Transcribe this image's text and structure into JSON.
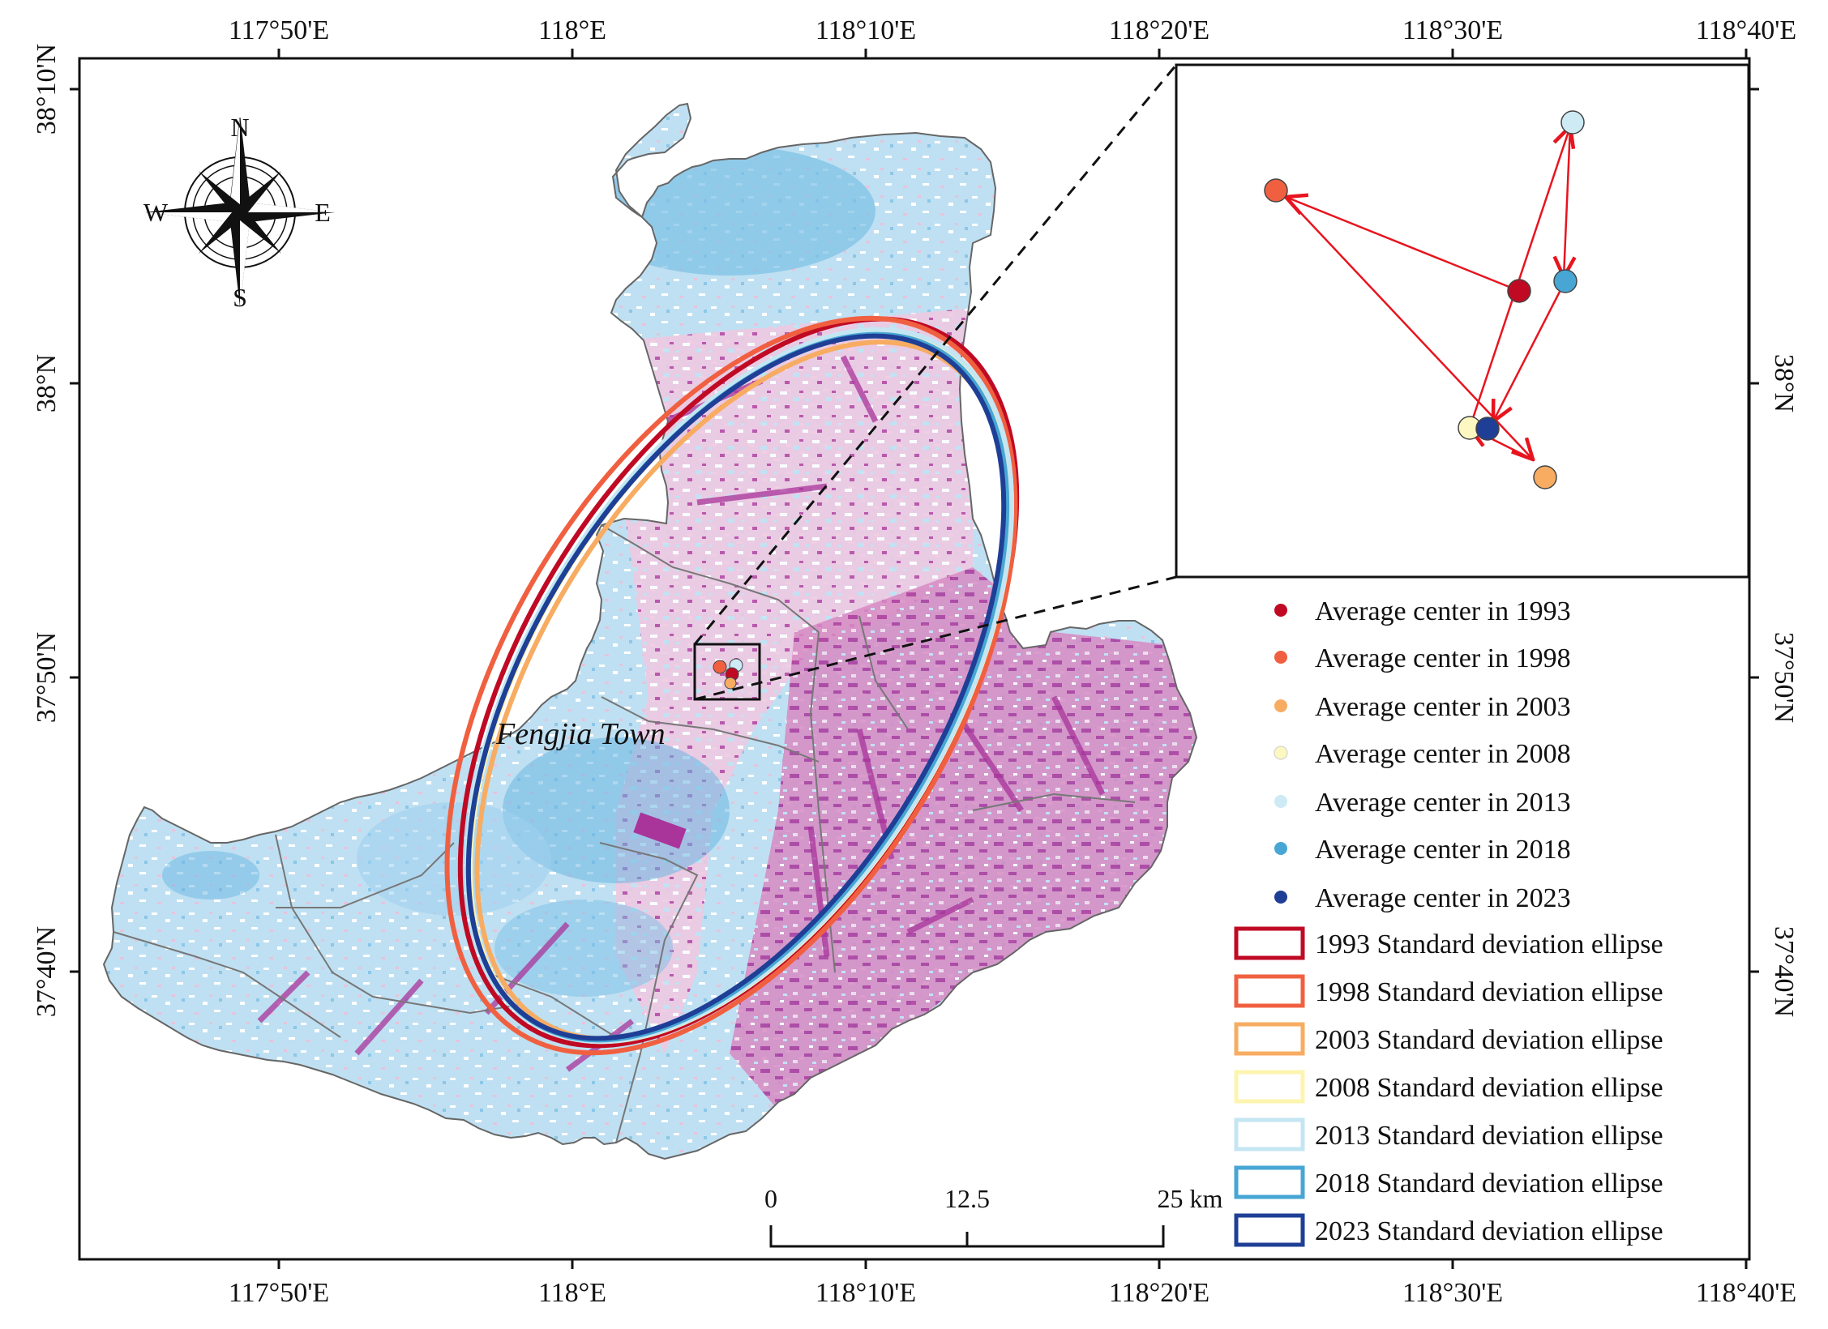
{
  "map": {
    "top_ticks": [
      "117°50'E",
      "118°E",
      "118°10'E",
      "118°20'E",
      "118°30'E",
      "118°40'E"
    ],
    "bottom_ticks": [
      "117°50'E",
      "118°E",
      "118°10'E",
      "118°20'E",
      "118°30'E",
      "118°40'E"
    ],
    "left_ticks": [
      "38°10'N",
      "38°N",
      "37°50'N",
      "37°40'N"
    ],
    "right_ticks": [
      "38°N",
      "37°50'N",
      "37°40'N"
    ],
    "town_label": "Fengjia Town",
    "compass": {
      "n": "N",
      "s": "S",
      "e": "E",
      "w": "W"
    },
    "scale_bar": {
      "labels": [
        "0",
        "12.5",
        "25 km"
      ]
    },
    "colors": {
      "land_blue": "#bfe0f2",
      "land_blue_dark": "#5aaedb",
      "land_pink": "#efc6df",
      "land_magenta": "#a9349a",
      "arrow": "#e8141e"
    }
  },
  "legend": {
    "centers": [
      {
        "label": "Average center in 1993",
        "color": "#c00a24"
      },
      {
        "label": "Average center in 1998",
        "color": "#f06040"
      },
      {
        "label": "Average center in 2003",
        "color": "#f7ac62"
      },
      {
        "label": "Average center in 2008",
        "color": "#fdf7c2"
      },
      {
        "label": "Average center in 2013",
        "color": "#cdeaf5"
      },
      {
        "label": "Average center in 2018",
        "color": "#47a6d4"
      },
      {
        "label": "Average center in 2023",
        "color": "#1f3f96"
      }
    ],
    "ellipses": [
      {
        "label": "1993 Standard deviation ellipse",
        "color": "#c00a24"
      },
      {
        "label": "1998 Standard deviation ellipse",
        "color": "#f06040"
      },
      {
        "label": "2003 Standard deviation ellipse",
        "color": "#f7ac62"
      },
      {
        "label": "2008 Standard deviation ellipse",
        "color": "#fdf4b0"
      },
      {
        "label": "2013 Standard deviation ellipse",
        "color": "#c4e6f3"
      },
      {
        "label": "2018 Standard deviation ellipse",
        "color": "#47a6d4"
      },
      {
        "label": "2023 Standard deviation ellipse",
        "color": "#1f3f96"
      }
    ]
  }
}
